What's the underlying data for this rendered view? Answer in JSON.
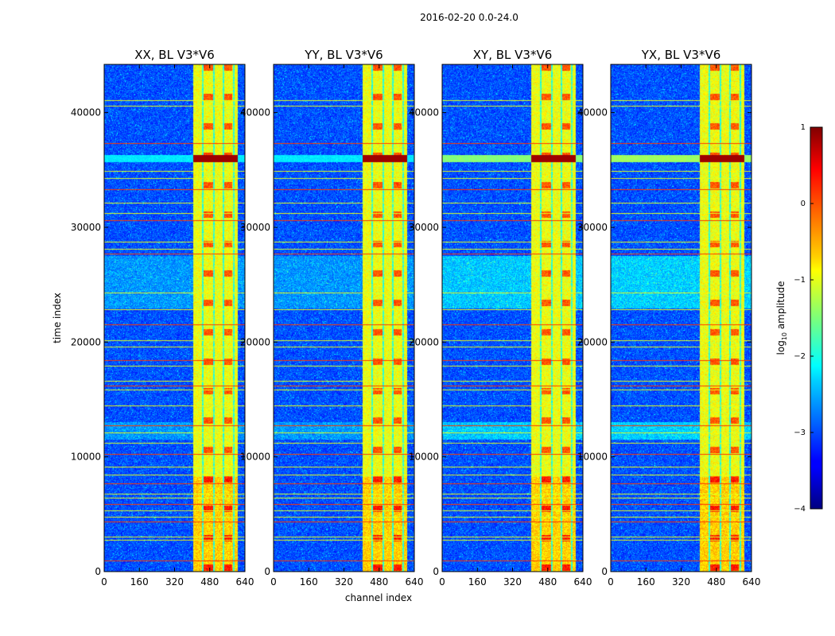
{
  "figure": {
    "suptitle": "2016-02-20 0.0-24.0"
  },
  "chart_data": {
    "type": "heatmap",
    "xlabel": "channel index",
    "ylabel": "time index",
    "x_range": [
      0,
      640
    ],
    "y_range": [
      0,
      44200
    ],
    "x_ticks": [
      "0",
      "160",
      "320",
      "480",
      "640"
    ],
    "x_tick_values": [
      0,
      160,
      320,
      480,
      640
    ],
    "y_ticks": [
      "0",
      "10000",
      "20000",
      "30000",
      "40000"
    ],
    "y_tick_values": [
      0,
      10000,
      20000,
      30000,
      40000
    ],
    "panels": [
      {
        "title": "XX, BL V3*V6",
        "polarization": "XX",
        "cross_level": 0.0
      },
      {
        "title": "YY, BL V3*V6",
        "polarization": "YY",
        "cross_level": 0.0
      },
      {
        "title": "XY, BL V3*V6",
        "polarization": "XY",
        "cross_level": 0.6
      },
      {
        "title": "YX, BL V3*V6",
        "polarization": "YX",
        "cross_level": 0.7
      }
    ],
    "colorbar": {
      "label": "log10 amplitude",
      "label_main": "log",
      "label_sub": "10",
      "label_rest": " amplitude",
      "range": [
        -4,
        1
      ],
      "ticks": [
        "1",
        "0",
        "−1",
        "−2",
        "−3",
        "−4"
      ],
      "tick_values": [
        1,
        0,
        -1,
        -2,
        -3,
        -4
      ],
      "colormap": "jet"
    },
    "structure": {
      "bright_channel_band": [
        405,
        610
      ],
      "channel_gaps": [
        450,
        500,
        545,
        590
      ],
      "flagged_time_rows": [
        900,
        2700,
        2950,
        4300,
        4700,
        5300,
        5800,
        6400,
        6700,
        7600,
        8400,
        9100,
        10200,
        11200,
        12100,
        12700,
        14400,
        15800,
        16200,
        16600,
        17900,
        18400,
        19600,
        20100,
        21500,
        22800,
        24300,
        27700,
        28100,
        28700,
        30600,
        31200,
        32100,
        33300,
        34300,
        34900,
        37300,
        40600,
        41100
      ],
      "saturated_time_band": [
        35700,
        36300
      ],
      "enhanced_time_bands": [
        [
          23000,
          27500
        ],
        [
          11500,
          13000
        ]
      ]
    }
  }
}
